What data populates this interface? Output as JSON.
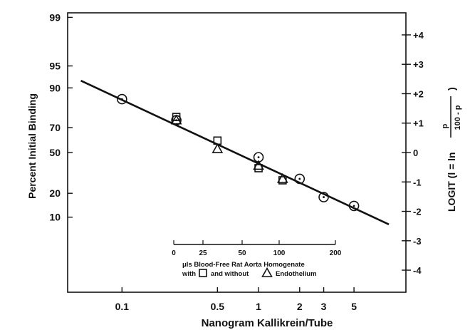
{
  "chart_data": {
    "type": "scatter",
    "title": "",
    "xlabel": "Nanogram Kallikrein/Tube",
    "ylabel": "Percent Initial Binding",
    "y2label": "LOGIT (l = ln p/(100 - p))",
    "x_scale": "log",
    "y_scale": "logit",
    "xlim": [
      0.04,
      12
    ],
    "x_ticks": [
      0.1,
      0.5,
      1,
      2,
      3,
      5
    ],
    "x_tick_labels": [
      "0.1",
      "0.5",
      "1",
      "2",
      "3",
      "5"
    ],
    "y_ticks": [
      10,
      20,
      50,
      70,
      90,
      95,
      99
    ],
    "y_tick_labels": [
      "10",
      "20",
      "50",
      "70",
      "90",
      "95",
      "99"
    ],
    "y2_ticks": [
      4,
      3,
      2,
      1,
      0,
      -1,
      -2,
      -3,
      -4
    ],
    "y2_tick_labels": [
      "+4",
      "+3",
      "+2",
      "+1",
      "0",
      "-1",
      "-2",
      "-3",
      "-4"
    ],
    "grid": false,
    "series": [
      {
        "marker": "circle-dot",
        "x": [
          0.1,
          0.25,
          1,
          2,
          3,
          5
        ],
        "y": [
          86,
          75,
          46,
          29,
          18,
          14
        ]
      },
      {
        "marker": "square",
        "x": [
          0.25,
          0.5,
          1,
          1.5
        ],
        "y": [
          77,
          60,
          37,
          28
        ]
      },
      {
        "marker": "triangle",
        "x": [
          0.25,
          0.5,
          1,
          1.5
        ],
        "y": [
          75,
          53,
          39,
          29
        ]
      }
    ],
    "fit_line": {
      "x": [
        0.05,
        9
      ],
      "y": [
        92,
        8
      ]
    },
    "inset_axis": {
      "ticks": [
        "0",
        "25",
        "50",
        "100",
        "200"
      ],
      "caption_line1": "μls Blood-Free Rat Aorta Homogenate",
      "caption_line2_prefix": "with",
      "caption_line2_mid": "and without",
      "caption_line2_suffix": "Endothelium"
    }
  }
}
